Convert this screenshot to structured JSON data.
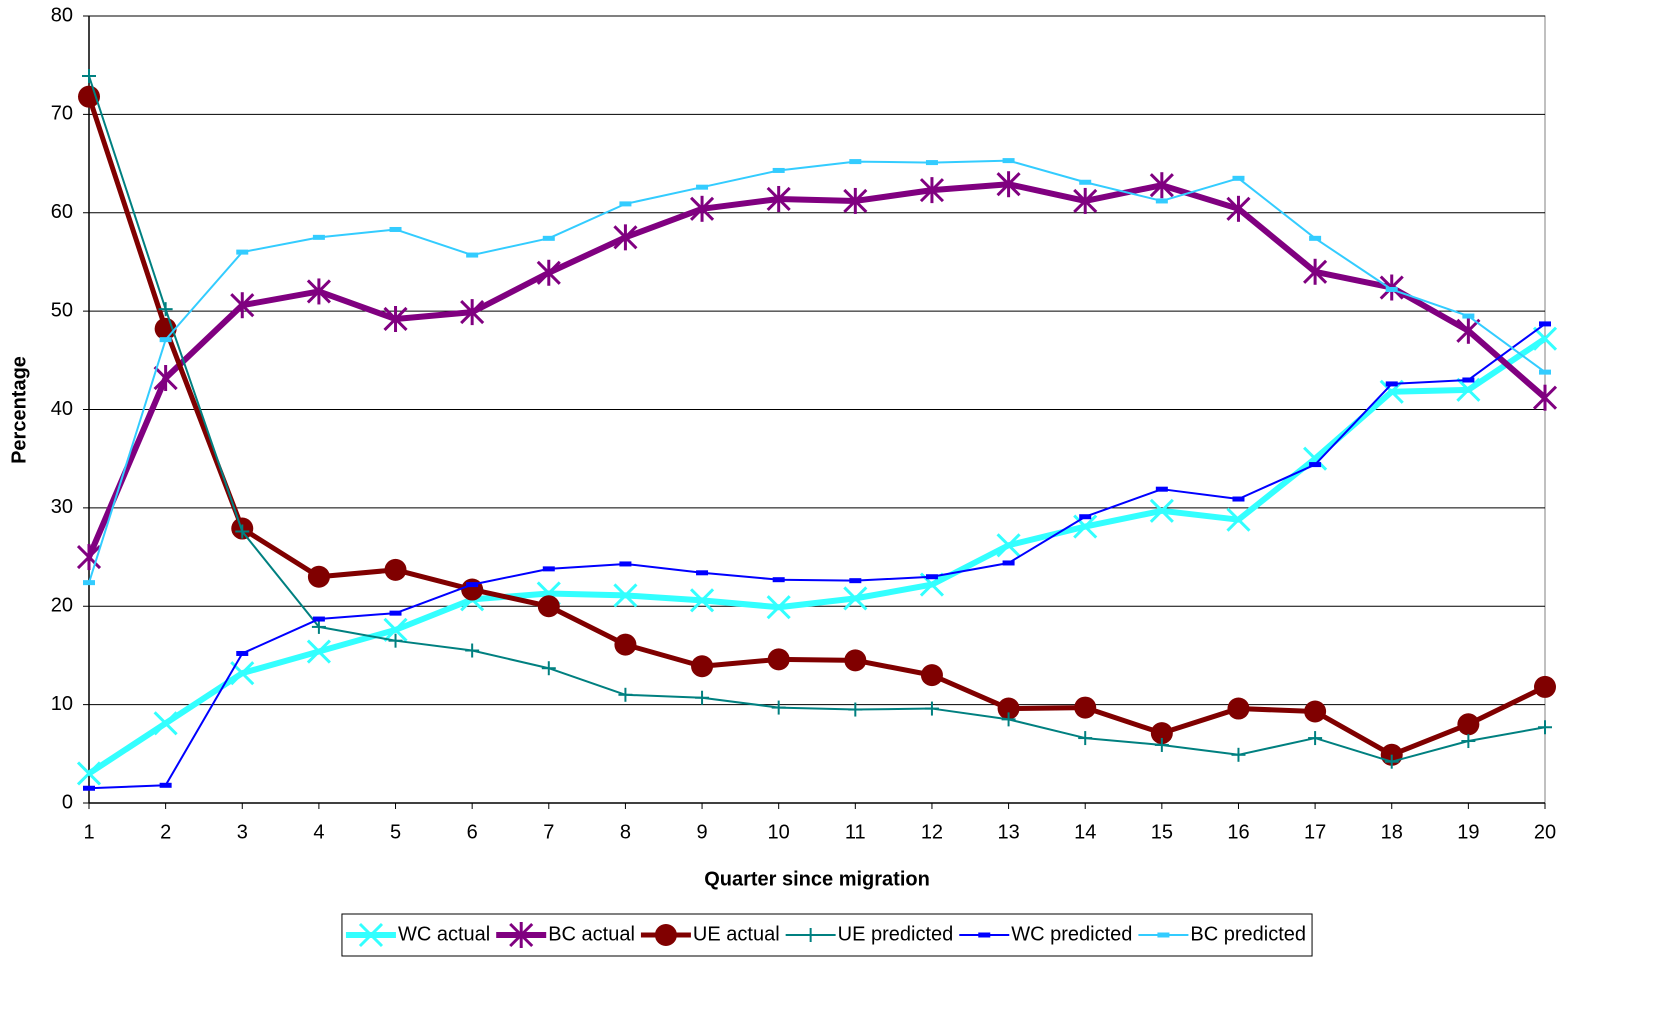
{
  "chart_data": {
    "type": "line",
    "x_label": "Quarter since migration",
    "y_label": "Percentage",
    "x": [
      1,
      2,
      3,
      4,
      5,
      6,
      7,
      8,
      9,
      10,
      11,
      12,
      13,
      14,
      15,
      16,
      17,
      18,
      19,
      20
    ],
    "xlim": [
      1,
      20
    ],
    "xticks": [
      1,
      2,
      3,
      4,
      5,
      6,
      7,
      8,
      9,
      10,
      11,
      12,
      13,
      14,
      15,
      16,
      17,
      18,
      19,
      20
    ],
    "ylim": [
      0,
      80
    ],
    "yticks": [
      0,
      10,
      20,
      30,
      40,
      50,
      60,
      70,
      80
    ],
    "grid": true,
    "legend": "bottom",
    "series": [
      {
        "name": "WC actual",
        "color": "#33ffff",
        "marker": "x",
        "line_width": 6,
        "values": [
          3,
          8.1,
          13.2,
          15.4,
          17.6,
          20.7,
          21.3,
          21.1,
          20.6,
          19.9,
          20.8,
          22.2,
          26.2,
          28.1,
          29.7,
          28.8,
          35,
          41.8,
          42,
          47.2
        ]
      },
      {
        "name": "BC actual",
        "color": "#800080",
        "marker": "asterisk",
        "line_width": 6,
        "values": [
          25,
          43.2,
          50.6,
          52,
          49.2,
          49.9,
          53.9,
          57.5,
          60.4,
          61.4,
          61.2,
          62.3,
          62.9,
          61.2,
          62.8,
          60.4,
          54,
          52.4,
          48,
          41.2
        ]
      },
      {
        "name": "UE actual",
        "color": "#800000",
        "marker": "circle",
        "line_width": 5,
        "values": [
          71.8,
          48.2,
          27.9,
          23,
          23.7,
          21.7,
          20,
          16.1,
          13.9,
          14.6,
          14.5,
          13,
          9.6,
          9.7,
          7.1,
          9.6,
          9.3,
          4.9,
          8,
          11.8
        ]
      },
      {
        "name": "UE predicted",
        "color": "#008080",
        "marker": "plus",
        "line_width": 2,
        "values": [
          73.9,
          50.2,
          27.6,
          17.9,
          16.5,
          15.5,
          13.7,
          11,
          10.7,
          9.7,
          9.5,
          9.6,
          8.5,
          6.6,
          5.9,
          4.9,
          6.6,
          4.2,
          6.3,
          7.7
        ]
      },
      {
        "name": "WC predicted",
        "color": "#0000ff",
        "marker": "dash",
        "line_width": 2,
        "values": [
          1.5,
          1.8,
          15.2,
          18.7,
          19.3,
          22.2,
          23.8,
          24.3,
          23.4,
          22.7,
          22.6,
          23,
          24.4,
          29.1,
          31.9,
          30.9,
          34.4,
          42.6,
          43,
          48.7
        ]
      },
      {
        "name": "BC predicted",
        "color": "#33ccff",
        "marker": "dash",
        "line_width": 2,
        "values": [
          22.4,
          47.1,
          56,
          57.5,
          58.3,
          55.7,
          57.4,
          60.9,
          62.6,
          64.3,
          65.2,
          65.1,
          65.3,
          63.1,
          61.2,
          63.5,
          57.4,
          52.2,
          49.5,
          43.8
        ]
      }
    ]
  }
}
